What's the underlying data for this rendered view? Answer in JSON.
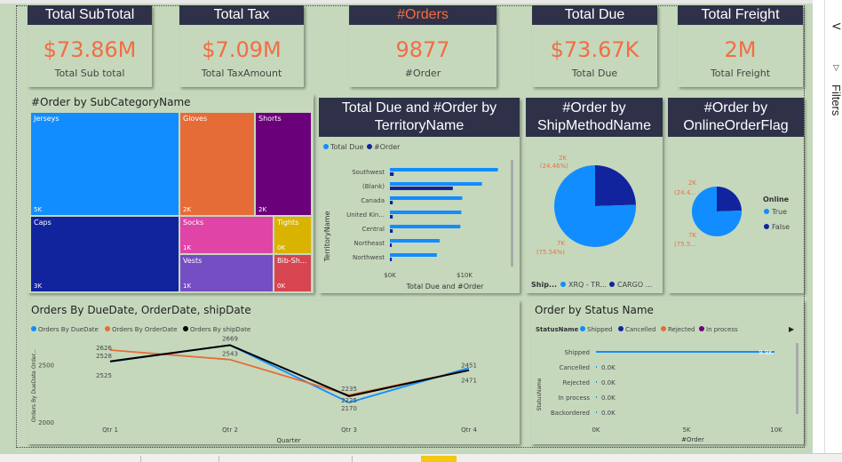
{
  "cards": [
    {
      "title": "Total SubTotal",
      "value": "$73.86M",
      "label": "Total Sub total"
    },
    {
      "title": "Total Tax",
      "value": "$7.09M",
      "label": "Total TaxAmount"
    },
    {
      "title": "#Orders",
      "value": "9877",
      "label": "#Order"
    },
    {
      "title": "Total Due",
      "value": "$73.67K",
      "label": "Total Due"
    },
    {
      "title": "Total Freight",
      "value": "2M",
      "label": "Total Freight"
    }
  ],
  "treemap": {
    "title": "#Order by SubCategoryName",
    "tiles": [
      {
        "name": "Jerseys",
        "value": "5K",
        "color": "#118dff"
      },
      {
        "name": "Gloves",
        "value": "2K",
        "color": "#e66c37"
      },
      {
        "name": "Shorts",
        "value": "2K",
        "color": "#6b007b"
      },
      {
        "name": "Caps",
        "value": "3K",
        "color": "#12239e"
      },
      {
        "name": "Socks",
        "value": "1K",
        "color": "#e044a7"
      },
      {
        "name": "Tights",
        "value": "0K",
        "color": "#d9b300"
      },
      {
        "name": "Vests",
        "value": "1K",
        "color": "#744ec2"
      },
      {
        "name": "Bib-Sh...",
        "value": "0K",
        "color": "#d64550"
      }
    ]
  },
  "territory": {
    "title": "Total Due and #Order by TerritoryName",
    "legend": [
      "Total Due",
      "#Order"
    ],
    "ylabel": "TerritoryName",
    "xlabel": "Total Due and #Order",
    "ticks": [
      "$0K",
      "$10K"
    ]
  },
  "shipmethod": {
    "title": "#Order by ShipMethodName",
    "label_top": "2K",
    "label_top_pct": "(24.46%)",
    "label_bottom": "7K",
    "label_bottom_pct": "(75.54%)",
    "legend_title": "Ship...",
    "legend": [
      "XRQ - TR...",
      "CARGO ..."
    ]
  },
  "online": {
    "title": "#Order by OnlineOrderFlag",
    "label_top": "2K",
    "label_top_pct": "(24.4...",
    "label_bottom": "7K",
    "label_bottom_pct": "(75.5...",
    "legend_title": "Online",
    "legend": [
      "True",
      "False"
    ]
  },
  "duedate": {
    "title": "Orders By DueDate, OrderDate, shipDate",
    "legend": [
      "Orders By DueDate",
      "Orders By OrderDate",
      "Orders By shipDate"
    ],
    "ylabel": "Orders By DueDate  Order...",
    "xlabel": "Quarter"
  },
  "status": {
    "title": "Order by Status Name",
    "legend_title": "StatusName",
    "legend": [
      "Shipped",
      "Cancelled",
      "Rejected",
      "In process"
    ],
    "ylabel": "StatusName",
    "xlabel": "#Order",
    "ticks": [
      "0K",
      "5K",
      "10K"
    ]
  },
  "sidebar": {
    "filters_label": "Filters"
  },
  "chart_data": [
    {
      "type": "bar",
      "title": "Total Due and #Order by TerritoryName",
      "categories": [
        "Southwest",
        "(Blank)",
        "Canada",
        "United Kin...",
        "Central",
        "Northeast",
        "Northwest"
      ],
      "series": [
        {
          "name": "Total Due",
          "color": "#118dff",
          "values": [
            11.5,
            9.8,
            7.7,
            7.6,
            7.5,
            5.3,
            5.0
          ]
        },
        {
          "name": "#Order",
          "color": "#12239e",
          "values": [
            0.4,
            6.7,
            0.3,
            0.3,
            0.3,
            0.2,
            0.2
          ]
        }
      ],
      "xlim": [
        0,
        14
      ]
    },
    {
      "type": "pie",
      "title": "#Order by ShipMethodName",
      "labels": [
        "XRQ - TR...",
        "CARGO ..."
      ],
      "values": [
        75.54,
        24.46
      ],
      "colors": [
        "#118dff",
        "#12239e"
      ]
    },
    {
      "type": "pie",
      "title": "#Order by OnlineOrderFlag",
      "labels": [
        "True",
        "False"
      ],
      "values": [
        75.5,
        24.4
      ],
      "colors": [
        "#118dff",
        "#12239e"
      ]
    },
    {
      "type": "line",
      "title": "Orders By DueDate, OrderDate, shipDate",
      "categories": [
        "Qtr 1",
        "Qtr 2",
        "Qtr 3",
        "Qtr 4"
      ],
      "series": [
        {
          "name": "Orders By DueDate",
          "color": "#118dff",
          "values": [
            2525,
            2669,
            2170,
            2471
          ]
        },
        {
          "name": "Orders By OrderDate",
          "color": "#e66c37",
          "values": [
            2626,
            2543,
            2235,
            2451
          ]
        },
        {
          "name": "Orders By shipDate",
          "color": "#000000",
          "values": [
            2528,
            2669,
            2225,
            2451
          ]
        }
      ],
      "yticks": [
        "2000",
        "2500"
      ],
      "ylim": [
        2000,
        2750
      ]
    },
    {
      "type": "bar",
      "title": "Order by Status Name",
      "categories": [
        "Shipped",
        "Cancelled",
        "Rejected",
        "In process",
        "Backordered"
      ],
      "values": [
        9.9,
        0,
        0,
        0,
        0
      ],
      "data_labels": [
        "9.9K",
        "0.0K",
        "0.0K",
        "0.0K",
        "0.0K"
      ],
      "xlim": [
        0,
        10
      ]
    }
  ]
}
